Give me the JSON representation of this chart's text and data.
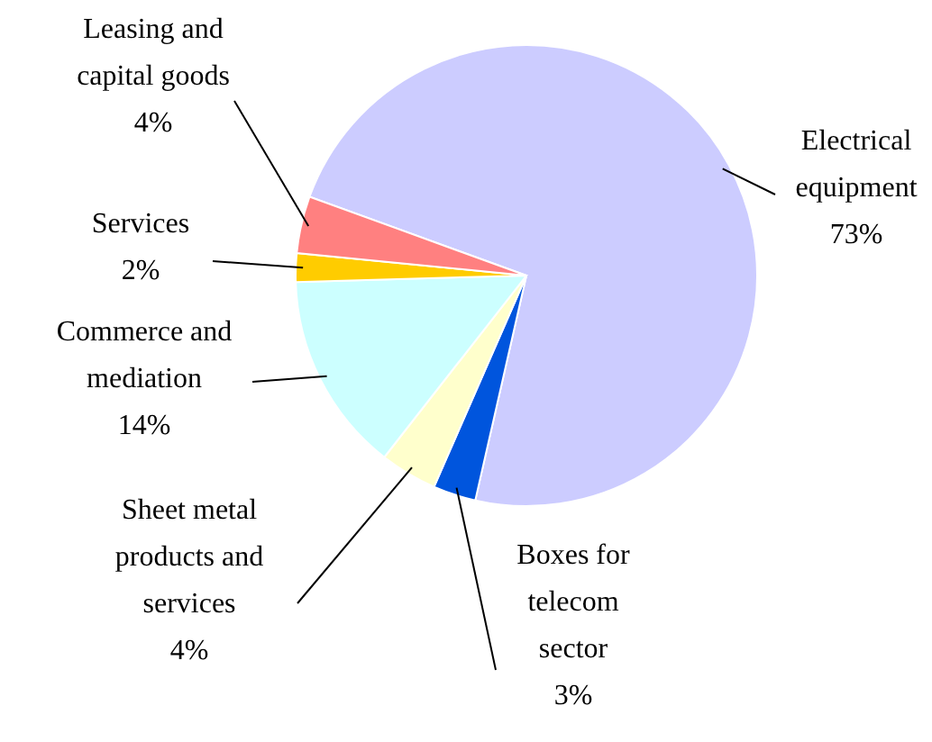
{
  "chart_data": {
    "type": "pie",
    "categories": [
      "Electrical equipment",
      "Boxes for telecom sector",
      "Sheet metal products and services",
      "Commerce and mediation",
      "Services",
      "Leasing and capital goods"
    ],
    "values": [
      73,
      3,
      4,
      14,
      2,
      4
    ],
    "value_labels": [
      "73%",
      "3%",
      "4%",
      "14%",
      "2%",
      "4%"
    ],
    "colors": [
      "#ccccff",
      "#0055dd",
      "#ffffcc",
      "#ccffff",
      "#ffcc00",
      "#ff8080"
    ]
  }
}
